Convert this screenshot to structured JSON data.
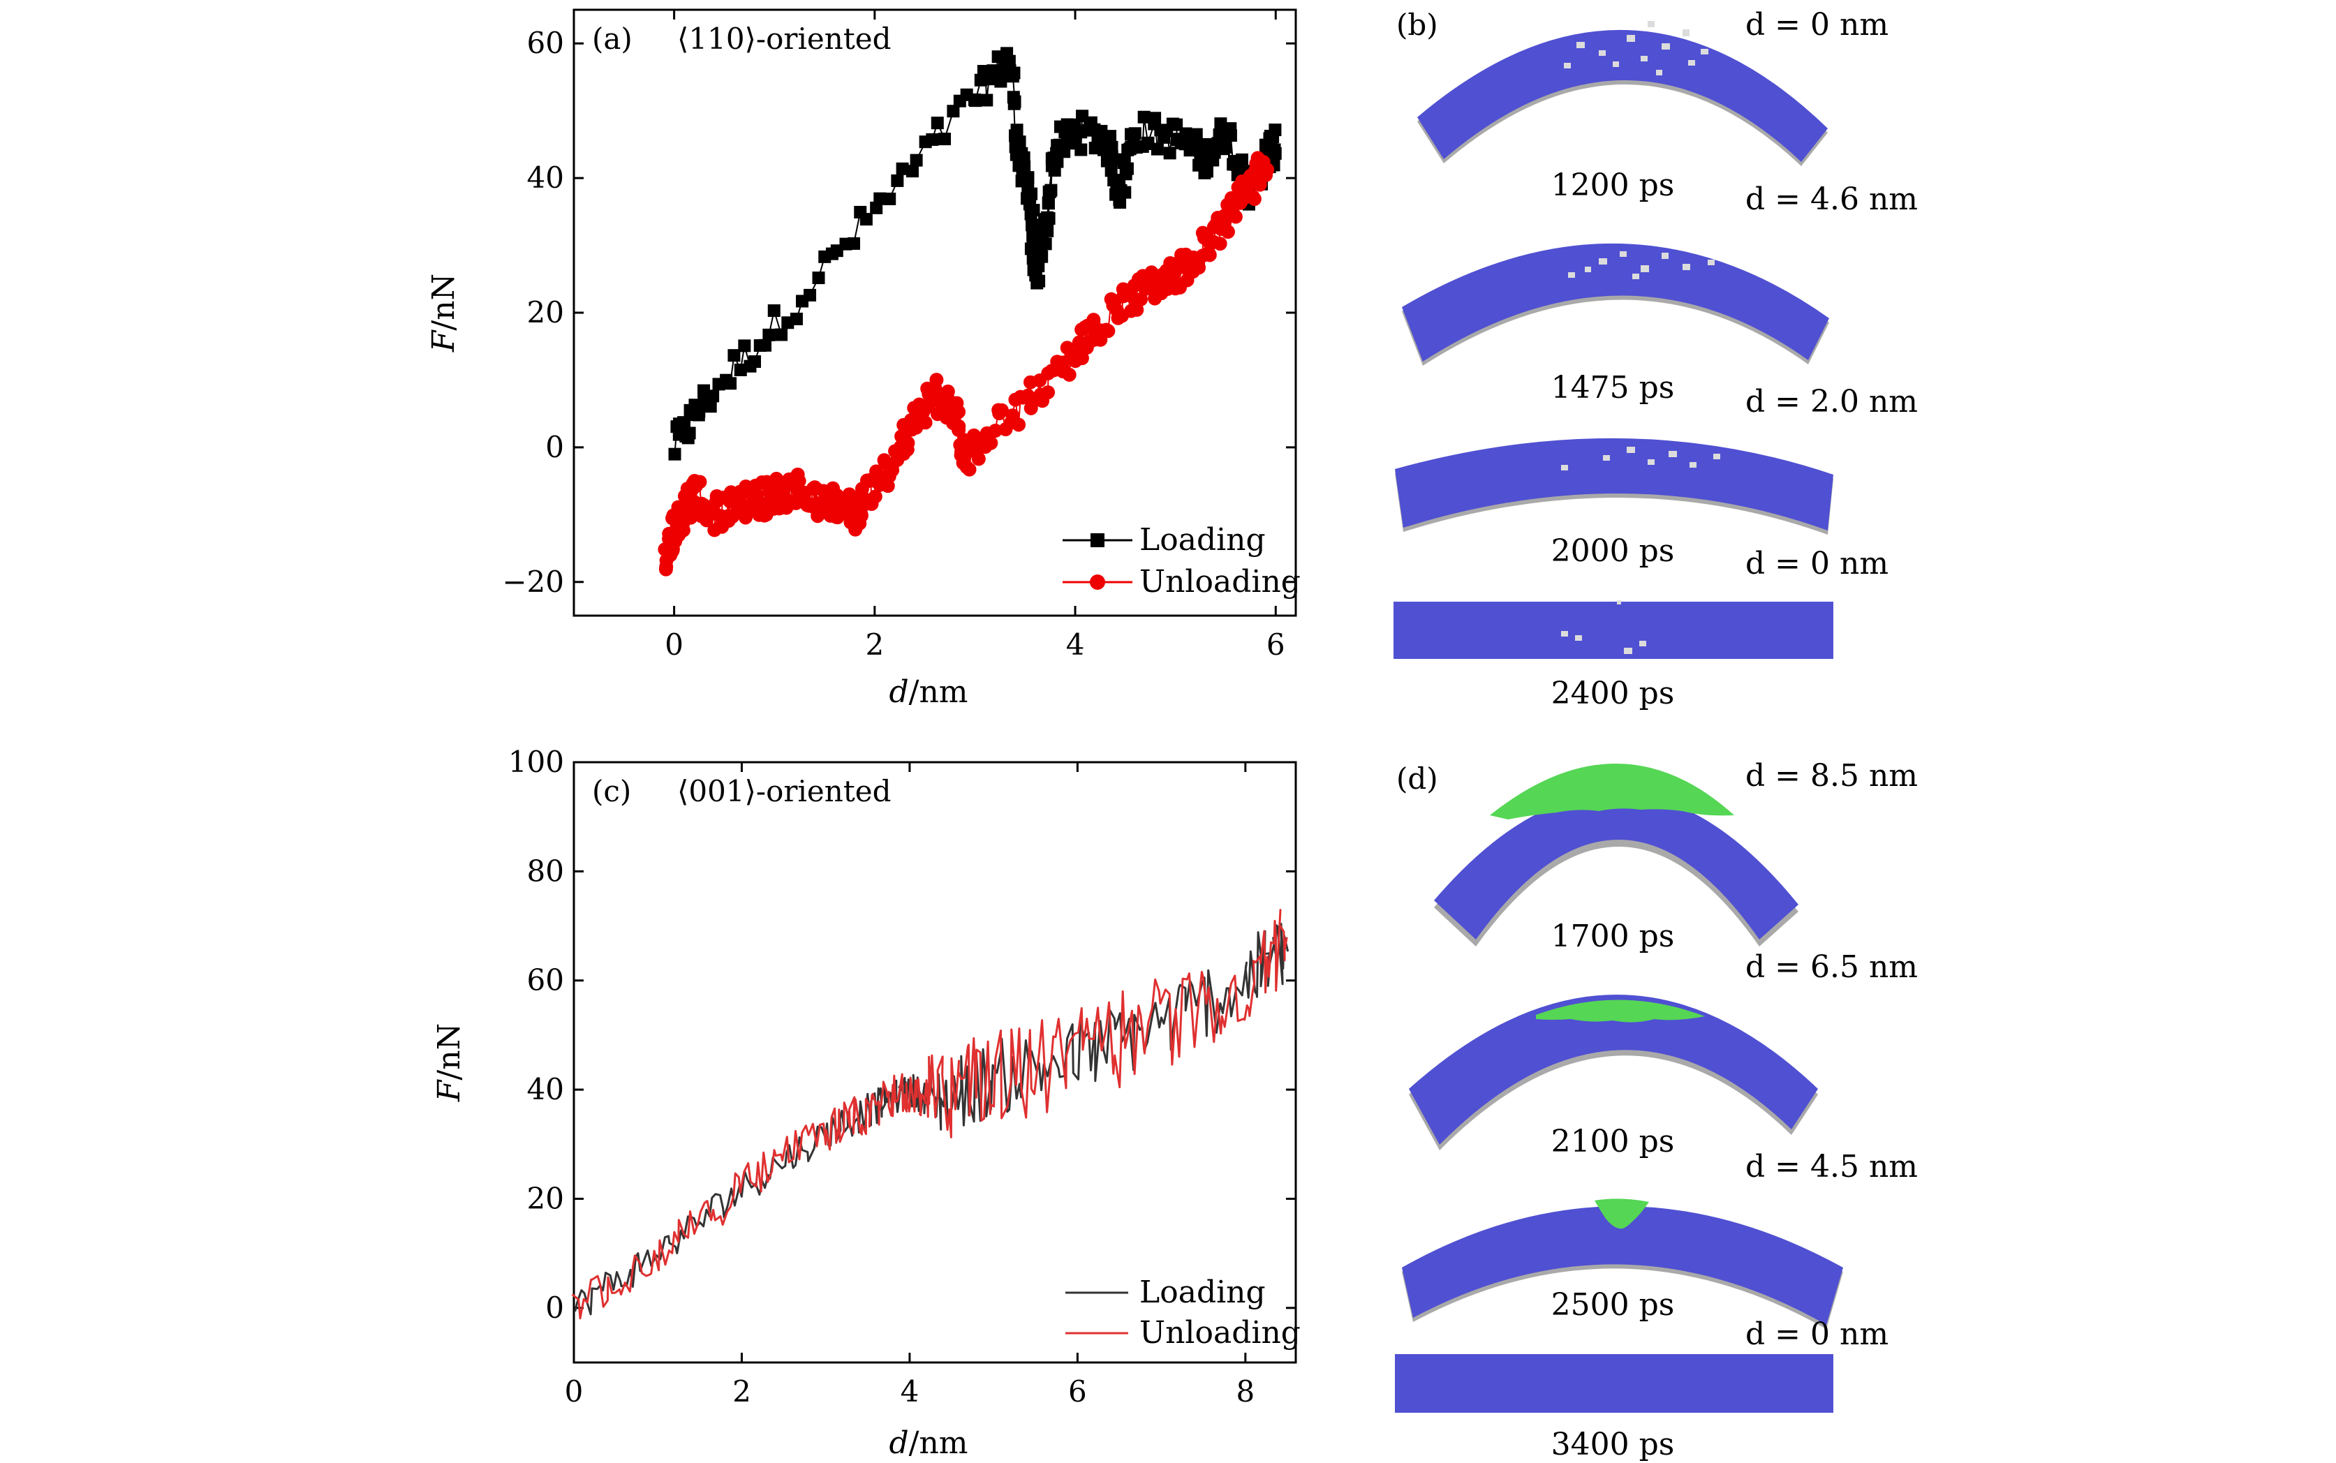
{
  "figure": {
    "panels": [
      {
        "panel_label": "(a)",
        "orientation_label": "⟨110⟩-oriented"
      },
      {
        "panel_label": "(c)",
        "orientation_label": "⟨001⟩-oriented"
      }
    ]
  },
  "chart_data": [
    {
      "type": "scatter",
      "title": "⟨110⟩-oriented",
      "panel": "(a)",
      "xlabel_italic": "d",
      "xlabel_unit": "/nm",
      "ylabel_italic": "F",
      "ylabel_unit": "/nN",
      "xlim": [
        -1,
        6.2
      ],
      "ylim": [
        -25,
        65
      ],
      "xticks": [
        0,
        2,
        4,
        6
      ],
      "yticks": [
        -20,
        0,
        20,
        40,
        60
      ],
      "ytick_labels": [
        "−20",
        "0",
        "20",
        "40",
        "60"
      ],
      "legend_position": "bottom-right",
      "series": [
        {
          "name": "Loading",
          "color": "#000000",
          "marker": "square",
          "keypoints": [
            [
              0,
              0
            ],
            [
              0.3,
              7
            ],
            [
              1.0,
              18
            ],
            [
              2.0,
              35
            ],
            [
              3.0,
              52
            ],
            [
              3.35,
              58
            ],
            [
              3.45,
              42
            ],
            [
              3.55,
              38
            ],
            [
              3.6,
              24
            ],
            [
              3.7,
              32
            ],
            [
              3.8,
              44
            ],
            [
              4.0,
              47
            ],
            [
              4.3,
              46
            ],
            [
              4.45,
              38
            ],
            [
              4.6,
              47
            ],
            [
              5.0,
              46
            ],
            [
              5.3,
              43
            ],
            [
              5.5,
              47
            ],
            [
              5.75,
              38
            ],
            [
              5.9,
              43
            ],
            [
              6.0,
              45
            ]
          ]
        },
        {
          "name": "Unloading",
          "color": "#ee0000",
          "marker": "circle",
          "keypoints": [
            [
              5.9,
              42
            ],
            [
              5.8,
              40
            ],
            [
              5.6,
              36
            ],
            [
              5.4,
              32
            ],
            [
              5.2,
              28
            ],
            [
              5.0,
              26
            ],
            [
              4.8,
              24
            ],
            [
              4.5,
              22
            ],
            [
              4.2,
              18
            ],
            [
              4.0,
              14
            ],
            [
              3.6,
              8
            ],
            [
              3.2,
              3
            ],
            [
              2.9,
              -2
            ],
            [
              2.8,
              5
            ],
            [
              2.6,
              8
            ],
            [
              2.4,
              4
            ],
            [
              2.2,
              -2
            ],
            [
              2.0,
              -6
            ],
            [
              1.8,
              -10
            ],
            [
              1.6,
              -8
            ],
            [
              1.4,
              -8
            ],
            [
              1.2,
              -6
            ],
            [
              1.0,
              -7
            ],
            [
              0.8,
              -8
            ],
            [
              0.6,
              -8
            ],
            [
              0.4,
              -10
            ],
            [
              0.2,
              -7
            ],
            [
              0.1,
              -10
            ],
            [
              0.0,
              -12
            ],
            [
              -0.1,
              -16
            ]
          ]
        }
      ]
    },
    {
      "type": "line",
      "title": "⟨001⟩-oriented",
      "panel": "(c)",
      "xlabel_italic": "d",
      "xlabel_unit": "/nm",
      "ylabel_italic": "F",
      "ylabel_unit": "/nN",
      "xlim": [
        0,
        8.6
      ],
      "ylim": [
        -10,
        100
      ],
      "xticks": [
        0,
        2,
        4,
        6,
        8
      ],
      "yticks": [
        0,
        20,
        40,
        60,
        80,
        100
      ],
      "legend_position": "bottom-right",
      "series": [
        {
          "name": "Loading",
          "color": "#333333",
          "keypoints": [
            [
              0,
              0
            ],
            [
              1.0,
              10
            ],
            [
              2.0,
              22
            ],
            [
              3.0,
              32
            ],
            [
              3.6,
              37
            ],
            [
              4.0,
              40
            ],
            [
              4.3,
              38
            ],
            [
              5.0,
              42
            ],
            [
              6.0,
              46
            ],
            [
              7.0,
              52
            ],
            [
              8.0,
              60
            ],
            [
              8.5,
              66
            ]
          ]
        },
        {
          "name": "Unloading",
          "color": "#e03030",
          "keypoints": [
            [
              8.5,
              66
            ],
            [
              8.0,
              60
            ],
            [
              7.0,
              52
            ],
            [
              6.0,
              46
            ],
            [
              5.0,
              42
            ],
            [
              4.3,
              38
            ],
            [
              4.0,
              40
            ],
            [
              3.6,
              37
            ],
            [
              3.0,
              32
            ],
            [
              2.0,
              22
            ],
            [
              1.0,
              10
            ],
            [
              0,
              0
            ]
          ]
        }
      ]
    }
  ],
  "snapshots": {
    "b": {
      "panel_label": "(b)",
      "items": [
        {
          "d_label": "d = 0 nm",
          "time": "1200 ps"
        },
        {
          "d_label": "d = 4.6 nm",
          "time": "1475 ps"
        },
        {
          "d_label": "d = 2.0 nm",
          "time": "2000 ps"
        },
        {
          "d_label": "d = 0 nm",
          "time": "2400 ps"
        }
      ]
    },
    "d": {
      "panel_label": "(d)",
      "items": [
        {
          "d_label": "d = 8.5 nm",
          "time": "1700 ps"
        },
        {
          "d_label": "d = 6.5 nm",
          "time": "2100 ps"
        },
        {
          "d_label": "d = 4.5 nm",
          "time": "2500 ps"
        },
        {
          "d_label": "d = 0 nm",
          "time": "3400 ps"
        }
      ]
    },
    "colors": {
      "atoms_blue": "#5050d2",
      "defect_green": "#55d655",
      "surface_gray": "#a9a9a9",
      "defect_white": "#dcdcdc"
    }
  }
}
